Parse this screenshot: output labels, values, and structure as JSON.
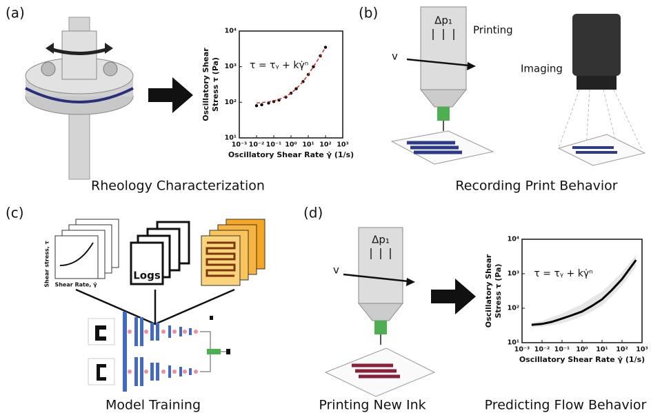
{
  "panels": [
    {
      "label": "(a)",
      "caption": "Rheology Characterization"
    },
    {
      "label": "(b)",
      "caption": "Recording Print Behavior",
      "pressure": "Δp₁",
      "printing": "Printing",
      "velocity": "v",
      "imaging": "Imaging"
    },
    {
      "label": "(c)",
      "caption": "Model Training",
      "ylabel": "Shear stress, τ",
      "xlabel": "Shear Rate, γ̇",
      "logs": "Logs"
    },
    {
      "label": "(d)",
      "caption": "Printing New Ink",
      "pressure": "Δp₁",
      "velocity": "v",
      "caption_right": "Predicting Flow Behavior"
    }
  ],
  "chart_data": [
    {
      "type": "line",
      "log_x": true,
      "log_y": true,
      "ylabel": [
        "Oscillatory Shear",
        "Stress  τ  (Pa)"
      ],
      "xlabel": "Oscillatory Shear Rate  γ̇  (1/s)",
      "annotation": "τ = τᵧ + kγ̇ⁿ",
      "xlim": [
        0.001,
        1000
      ],
      "ylim": [
        10,
        10000
      ],
      "xticks": [
        {
          "value": 0.001,
          "label": "10⁻³"
        },
        {
          "value": 0.01,
          "label": "10⁻²"
        },
        {
          "value": 0.1,
          "label": "10⁻¹"
        },
        {
          "value": 1,
          "label": "10⁰"
        },
        {
          "value": 10,
          "label": "10¹"
        },
        {
          "value": 100,
          "label": "10²"
        },
        {
          "value": 1000,
          "label": "10³"
        }
      ],
      "yticks": [
        {
          "value": 10,
          "label": "10¹"
        },
        {
          "value": 100,
          "label": "10²"
        },
        {
          "value": 1000,
          "label": "10³"
        },
        {
          "value": 10000,
          "label": "10⁴"
        }
      ],
      "x": [
        0.01,
        0.02,
        0.05,
        0.1,
        0.2,
        0.5,
        1,
        2,
        5,
        10,
        20,
        50,
        100
      ],
      "series": [
        {
          "color": "#000000",
          "style": "dots",
          "values": [
            80,
            85,
            95,
            105,
            115,
            140,
            180,
            240,
            380,
            600,
            1000,
            2000,
            3500
          ]
        },
        {
          "color": "#e02020",
          "style": "dashed",
          "values": [
            95,
            98,
            103,
            110,
            120,
            145,
            180,
            240,
            380,
            600,
            1000,
            2000,
            3500
          ]
        }
      ]
    },
    {
      "type": "line",
      "log_x": true,
      "log_y": true,
      "ylabel": [
        "Oscillatory Shear",
        "Stress  τ  (Pa)"
      ],
      "xlabel": "Oscillatory Shear Rate  γ̇  (1/s)",
      "annotation": "τ = τᵧ + kγ̇ⁿ",
      "xlim": [
        0.001,
        1000
      ],
      "ylim": [
        10,
        10000
      ],
      "xticks": [
        {
          "value": 0.001,
          "label": "10⁻³"
        },
        {
          "value": 0.01,
          "label": "10⁻²"
        },
        {
          "value": 0.1,
          "label": "10⁻¹"
        },
        {
          "value": 1,
          "label": "10⁰"
        },
        {
          "value": 10,
          "label": "10¹"
        },
        {
          "value": 100,
          "label": "10²"
        },
        {
          "value": 1000,
          "label": "10³"
        }
      ],
      "yticks": [
        {
          "value": 10,
          "label": "10¹"
        },
        {
          "value": 100,
          "label": "10²"
        },
        {
          "value": 1000,
          "label": "10³"
        },
        {
          "value": 10000,
          "label": "10⁴"
        }
      ],
      "x": [
        0.003,
        0.01,
        0.03,
        0.1,
        0.3,
        1,
        3,
        10,
        30,
        100,
        500
      ],
      "band": {
        "color": "#e6e6e6",
        "low": [
          28,
          29,
          32,
          37,
          45,
          58,
          80,
          120,
          220,
          450,
          1600
        ],
        "high": [
          38,
          43,
          55,
          70,
          95,
          130,
          200,
          300,
          550,
          1100,
          3500
        ]
      },
      "series": [
        {
          "color": "#000000",
          "style": "solid",
          "values": [
            33,
            35,
            40,
            50,
            62,
            80,
            115,
            180,
            330,
            700,
            2500
          ]
        }
      ]
    }
  ]
}
